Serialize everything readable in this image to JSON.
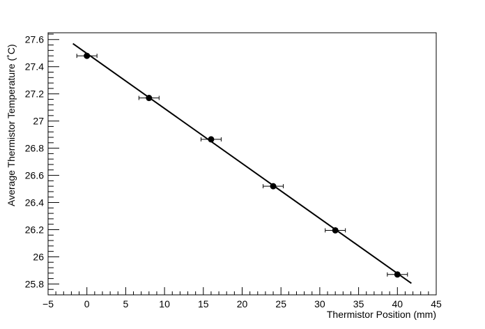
{
  "chart_data": {
    "type": "scatter",
    "title": "",
    "xlabel": "Thermistor Position (mm)",
    "ylabel": "Average Thermistor Temperature (˚C)",
    "xlim": [
      -5,
      45
    ],
    "ylim": [
      25.72,
      27.65
    ],
    "x_ticks": [
      -5,
      0,
      5,
      10,
      15,
      20,
      25,
      30,
      35,
      40,
      45
    ],
    "y_ticks": [
      25.8,
      26,
      26.2,
      26.4,
      26.6,
      26.8,
      27,
      27.2,
      27.4,
      27.6
    ],
    "x_tick_labels": [
      "−5",
      "0",
      "5",
      "10",
      "15",
      "20",
      "25",
      "30",
      "35",
      "40",
      "45"
    ],
    "y_tick_labels": [
      "25.8",
      "26",
      "26.2",
      "26.4",
      "26.6",
      "26.8",
      "27",
      "27.2",
      "27.4",
      "27.6"
    ],
    "grid": false,
    "points": [
      {
        "x": 0,
        "y": 27.48,
        "xerr": 1.3
      },
      {
        "x": 8,
        "y": 27.17,
        "xerr": 1.3
      },
      {
        "x": 16,
        "y": 26.865,
        "xerr": 1.3
      },
      {
        "x": 24,
        "y": 26.52,
        "xerr": 1.3
      },
      {
        "x": 32,
        "y": 26.195,
        "xerr": 1.3
      },
      {
        "x": 40,
        "y": 25.87,
        "xerr": 1.3
      }
    ],
    "fit_line": {
      "x0": -1.8,
      "y0": 27.57,
      "x1": 41.8,
      "y1": 25.805
    },
    "colors": {
      "marker": "#000000",
      "line": "#000000",
      "axis": "#000000"
    }
  }
}
